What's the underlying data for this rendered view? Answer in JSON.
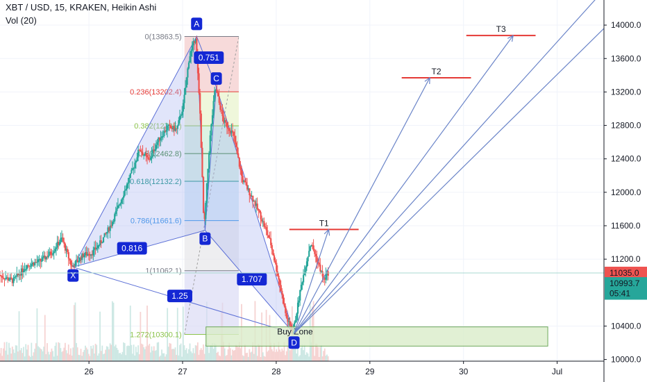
{
  "header": {
    "symbol_line": "XBT / USD, 15, KRAKEN, Heikin Ashi",
    "volume_line": "Vol (20)"
  },
  "colors": {
    "up": "#26a69a",
    "down": "#ef5350",
    "pattern_line": "#5b6fd6",
    "pattern_fill": "#aab4f0",
    "target_line": "#e53935",
    "arrow": "#6a84c8",
    "buy_zone_fill": "#d9ecc9",
    "buy_zone_border": "#6ea85a",
    "tag_fill": "#1428d4",
    "last_price": "#ef5350",
    "second_price": "#26a69a",
    "crosshair": "#a8d8d0"
  },
  "chart_data": {
    "type": "candlestick",
    "style": "Heikin Ashi",
    "y_axis": {
      "ticks": [
        "14000.0",
        "13600.0",
        "13200.0",
        "12800.0",
        "12400.0",
        "12000.0",
        "11600.0",
        "11200.0",
        "10400.0",
        "10000.0"
      ],
      "tick_values": [
        14000,
        13600,
        13200,
        12800,
        12400,
        12000,
        11600,
        11200,
        10400,
        10000
      ],
      "range": [
        9980,
        14300
      ]
    },
    "x_axis": {
      "ticks": [
        "26",
        "27",
        "28",
        "29",
        "30",
        "Jul"
      ],
      "tick_positions_days": [
        1,
        2,
        3,
        4,
        5,
        6
      ],
      "range_days": [
        0.05,
        6.5
      ]
    },
    "price_labels": [
      {
        "name": "last-price",
        "value": "11035.0",
        "price": 11035,
        "color": "#ef5350"
      },
      {
        "name": "second-price",
        "value": "10993.7",
        "price": 10910,
        "color": "#26a69a"
      },
      {
        "name": "countdown",
        "value": "05:41",
        "price": 10790,
        "color": "#26a69a"
      }
    ],
    "harmonic_points": [
      {
        "label": "X",
        "day": 0.83,
        "price": 11105
      },
      {
        "label": "A",
        "day": 2.15,
        "price": 13865
      },
      {
        "label": "B",
        "day": 2.24,
        "price": 11545
      },
      {
        "label": "C",
        "day": 2.36,
        "price": 13260
      },
      {
        "label": "D",
        "day": 3.19,
        "price": 10310
      }
    ],
    "ratio_labels": [
      {
        "text": "0.816",
        "day": 1.46,
        "price": 11330
      },
      {
        "text": "0.751",
        "day": 2.28,
        "price": 13610
      },
      {
        "text": "1.707",
        "day": 2.74,
        "price": 10960
      },
      {
        "text": "1.25",
        "day": 1.97,
        "price": 10760
      }
    ],
    "fib_levels": [
      {
        "label": "0(13863.5)",
        "price": 13863.5,
        "color": "#787b86",
        "band": "#f3c6c6"
      },
      {
        "label": "0.236(13202.4)",
        "price": 13202.4,
        "color": "#e53935",
        "band": "#e6f3c8"
      },
      {
        "label": "0.382(12795.)",
        "price": 12795,
        "color": "#8bc34a",
        "band": "#c9ecd6"
      },
      {
        "label": "0.5(12462.8)",
        "price": 12462.8,
        "color": "#2e7d32",
        "band": "#c6ecd9"
      },
      {
        "label": "0.618(12132.2)",
        "price": 12132.2,
        "color": "#00897b",
        "band": "#c7e3f3"
      },
      {
        "label": "0.786(11661.6)",
        "price": 11661.6,
        "color": "#1e88e5",
        "band": "#e5e5e8"
      },
      {
        "label": "1(11062.1)",
        "price": 11062.1,
        "color": "#787b86",
        "band": "#d8d8f5"
      },
      {
        "label": "1.272(10300.1)",
        "price": 10300.1,
        "color": "#8bc34a",
        "band": null
      }
    ],
    "targets": [
      {
        "label": "T1",
        "price": 11555,
        "day_start": 3.14,
        "day_end": 3.88
      },
      {
        "label": "T2",
        "price": 13370,
        "day_start": 4.34,
        "day_end": 5.08
      },
      {
        "label": "T3",
        "price": 13875,
        "day_start": 5.03,
        "day_end": 5.77
      }
    ],
    "buy_zone": {
      "label": "Buy Zone",
      "price_top": 10390,
      "price_bottom": 10160,
      "day_start": 2.25,
      "day_end": 5.9
    },
    "projection_arrows": [
      {
        "from_day": 3.19,
        "from_price": 10310,
        "to_day": 3.56,
        "to_price": 11555
      },
      {
        "from_day": 3.19,
        "from_price": 10310,
        "to_day": 4.64,
        "to_price": 13370
      },
      {
        "from_day": 3.19,
        "from_price": 10310,
        "to_day": 5.53,
        "to_price": 13875
      },
      {
        "from_day": 3.19,
        "from_price": 10310,
        "to_day": 6.5,
        "to_price": 14420
      },
      {
        "from_day": 3.19,
        "from_price": 10310,
        "to_day": 6.5,
        "to_price": 13960
      }
    ],
    "price_path": [
      {
        "day": 0.05,
        "price": 11010
      },
      {
        "day": 0.2,
        "price": 10940
      },
      {
        "day": 0.35,
        "price": 11130
      },
      {
        "day": 0.5,
        "price": 11180
      },
      {
        "day": 0.62,
        "price": 11290
      },
      {
        "day": 0.72,
        "price": 11450
      },
      {
        "day": 0.83,
        "price": 11105
      },
      {
        "day": 0.95,
        "price": 11250
      },
      {
        "day": 1.05,
        "price": 11280
      },
      {
        "day": 1.15,
        "price": 11420
      },
      {
        "day": 1.25,
        "price": 11620
      },
      {
        "day": 1.35,
        "price": 11900
      },
      {
        "day": 1.45,
        "price": 12180
      },
      {
        "day": 1.55,
        "price": 12520
      },
      {
        "day": 1.65,
        "price": 12380
      },
      {
        "day": 1.75,
        "price": 12620
      },
      {
        "day": 1.85,
        "price": 12780
      },
      {
        "day": 1.95,
        "price": 12750
      },
      {
        "day": 2.02,
        "price": 13050
      },
      {
        "day": 2.08,
        "price": 13600
      },
      {
        "day": 2.15,
        "price": 13865
      },
      {
        "day": 2.2,
        "price": 12900
      },
      {
        "day": 2.24,
        "price": 11545
      },
      {
        "day": 2.3,
        "price": 12600
      },
      {
        "day": 2.36,
        "price": 13260
      },
      {
        "day": 2.45,
        "price": 12850
      },
      {
        "day": 2.55,
        "price": 12700
      },
      {
        "day": 2.65,
        "price": 12150
      },
      {
        "day": 2.75,
        "price": 11950
      },
      {
        "day": 2.85,
        "price": 11700
      },
      {
        "day": 2.95,
        "price": 11400
      },
      {
        "day": 3.05,
        "price": 10900
      },
      {
        "day": 3.12,
        "price": 10500
      },
      {
        "day": 3.19,
        "price": 10310
      },
      {
        "day": 3.28,
        "price": 10900
      },
      {
        "day": 3.38,
        "price": 11400
      },
      {
        "day": 3.46,
        "price": 11150
      },
      {
        "day": 3.52,
        "price": 10950
      },
      {
        "day": 3.56,
        "price": 11035
      }
    ]
  }
}
